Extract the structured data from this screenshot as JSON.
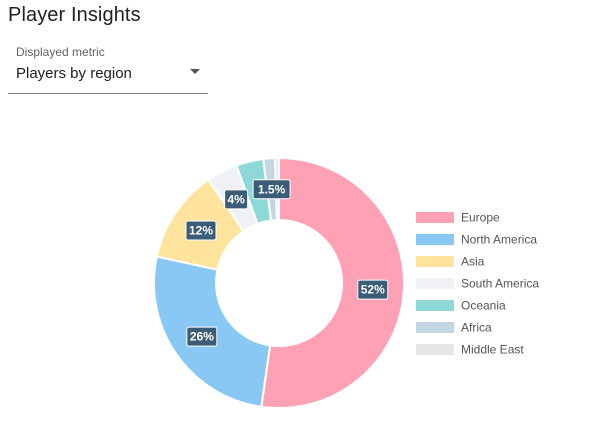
{
  "header": {
    "title": "Player Insights"
  },
  "metric_select": {
    "label": "Displayed metric",
    "value": "Players by region"
  },
  "colors": {
    "label_bg": "#3b5d78",
    "slice_border": "#ffffff"
  },
  "chart_data": {
    "type": "pie",
    "donut": true,
    "legend_position": "right",
    "categories": [
      "Europe",
      "North America",
      "Asia",
      "South America",
      "Oceania",
      "Africa",
      "Middle East"
    ],
    "values": [
      52,
      26,
      12,
      4,
      3.5,
      1.5,
      0.5
    ],
    "data_labels": [
      "52%",
      "26%",
      "12%",
      "4%",
      "",
      "1.5%",
      ""
    ],
    "colors": [
      "#ffa1b4",
      "#89c8f4",
      "#fde39c",
      "#f0f1f4",
      "#8ed8d8",
      "#c5d6e3",
      "#e6e7e9"
    ]
  }
}
